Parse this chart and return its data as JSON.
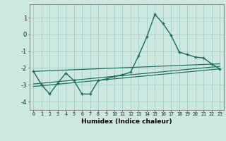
{
  "xlabel": "Humidex (Indice chaleur)",
  "bg_color": "#cce8e0",
  "grid_color": "#aacfc8",
  "line_color": "#1a6b5a",
  "xlim": [
    -0.5,
    23.5
  ],
  "ylim": [
    -4.5,
    1.8
  ],
  "xticks": [
    0,
    1,
    2,
    3,
    4,
    5,
    6,
    7,
    8,
    9,
    10,
    11,
    12,
    13,
    14,
    15,
    16,
    17,
    18,
    19,
    20,
    21,
    22,
    23
  ],
  "yticks": [
    -4,
    -3,
    -2,
    -1,
    0,
    1
  ],
  "line1_x": [
    0,
    1,
    2,
    3,
    4,
    5,
    6,
    7,
    8,
    9,
    10,
    11,
    12,
    13,
    14,
    15,
    16,
    17,
    18,
    19,
    20,
    21,
    22,
    23
  ],
  "line1_y": [
    -2.2,
    -3.0,
    -3.55,
    -2.9,
    -2.3,
    -2.75,
    -3.55,
    -3.55,
    -2.75,
    -2.65,
    -2.5,
    -2.4,
    -2.25,
    -1.25,
    -0.15,
    1.2,
    0.65,
    -0.05,
    -1.05,
    -1.2,
    -1.35,
    -1.4,
    -1.75,
    -2.05
  ],
  "line2_x": [
    0,
    23
  ],
  "line2_y": [
    -2.2,
    -1.75
  ],
  "line3_x": [
    0,
    23
  ],
  "line3_y": [
    -2.95,
    -1.9
  ],
  "line4_x": [
    0,
    23
  ],
  "line4_y": [
    -3.1,
    -2.05
  ]
}
